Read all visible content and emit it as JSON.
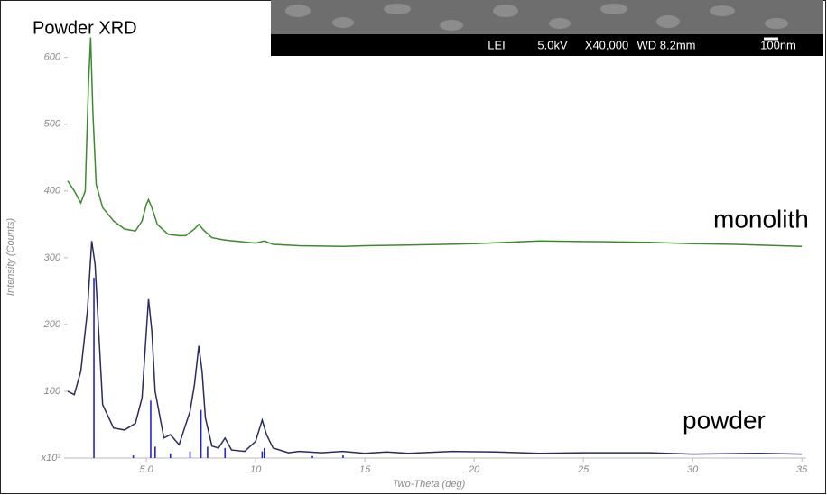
{
  "chart_data": {
    "type": "line",
    "title": "Powder XRD",
    "xlabel": "Two-Theta (deg)",
    "ylabel": "Intensity (Counts)",
    "xlim": [
      1.4,
      35.2
    ],
    "ylim": [
      0,
      632
    ],
    "xticks": [
      {
        "value": 5,
        "label": "5.0"
      },
      10,
      15,
      20,
      25,
      30,
      35
    ],
    "yticks": [
      {
        "value": 0,
        "label": "x10³"
      },
      100,
      200,
      300,
      400,
      500,
      600
    ],
    "inset_labels": [
      "LEI",
      "5.0kV",
      "X40,000",
      "WD 8.2mm",
      "100nm"
    ],
    "series": [
      {
        "name": "monolith",
        "color": "#3b8a2c",
        "x": [
          1.4,
          1.7,
          2.0,
          2.2,
          2.35,
          2.45,
          2.55,
          2.7,
          3.0,
          3.5,
          4.0,
          4.5,
          4.8,
          5.0,
          5.1,
          5.25,
          5.5,
          6.0,
          6.5,
          6.8,
          7.2,
          7.4,
          7.6,
          8.0,
          8.5,
          9.0,
          10.0,
          10.4,
          10.8,
          12,
          14,
          15,
          17,
          20,
          23,
          26,
          28,
          30,
          32,
          35
        ],
        "values": [
          415,
          400,
          382,
          400,
          560,
          630,
          520,
          410,
          375,
          355,
          343,
          340,
          355,
          380,
          387,
          375,
          350,
          335,
          333,
          333,
          343,
          350,
          342,
          330,
          327,
          325,
          322,
          325,
          320,
          318,
          317,
          318,
          319,
          321,
          325,
          324,
          323,
          321,
          320,
          317
        ]
      },
      {
        "name": "powder",
        "color": "#2b2b5e",
        "x": [
          1.4,
          1.7,
          2.0,
          2.3,
          2.5,
          2.65,
          2.8,
          3.0,
          3.5,
          4.0,
          4.5,
          4.8,
          5.0,
          5.1,
          5.25,
          5.4,
          5.8,
          6.1,
          6.5,
          7.0,
          7.2,
          7.4,
          7.55,
          7.7,
          8.0,
          8.3,
          8.6,
          8.9,
          9.5,
          10.0,
          10.3,
          10.5,
          10.8,
          11.5,
          12,
          13,
          14,
          15,
          16,
          17,
          19,
          21,
          23,
          25,
          28,
          30,
          33,
          35
        ],
        "values": [
          100,
          95,
          130,
          220,
          325,
          290,
          200,
          80,
          45,
          42,
          52,
          90,
          190,
          238,
          190,
          100,
          30,
          35,
          20,
          70,
          110,
          168,
          130,
          60,
          18,
          15,
          30,
          12,
          10,
          25,
          57,
          35,
          15,
          8,
          10,
          8,
          10,
          7,
          9,
          7,
          10,
          9,
          7,
          8,
          8,
          6,
          7,
          6
        ]
      },
      {
        "mode": "stick",
        "color": "#2424d0",
        "x": [
          2.6,
          4.4,
          5.2,
          5.4,
          6.1,
          7.0,
          7.5,
          7.8,
          8.6,
          10.3,
          10.4,
          12.6,
          14.0
        ],
        "values": [
          270,
          4,
          86,
          17,
          7,
          10,
          72,
          17,
          15,
          10,
          15,
          3,
          4
        ]
      }
    ]
  }
}
